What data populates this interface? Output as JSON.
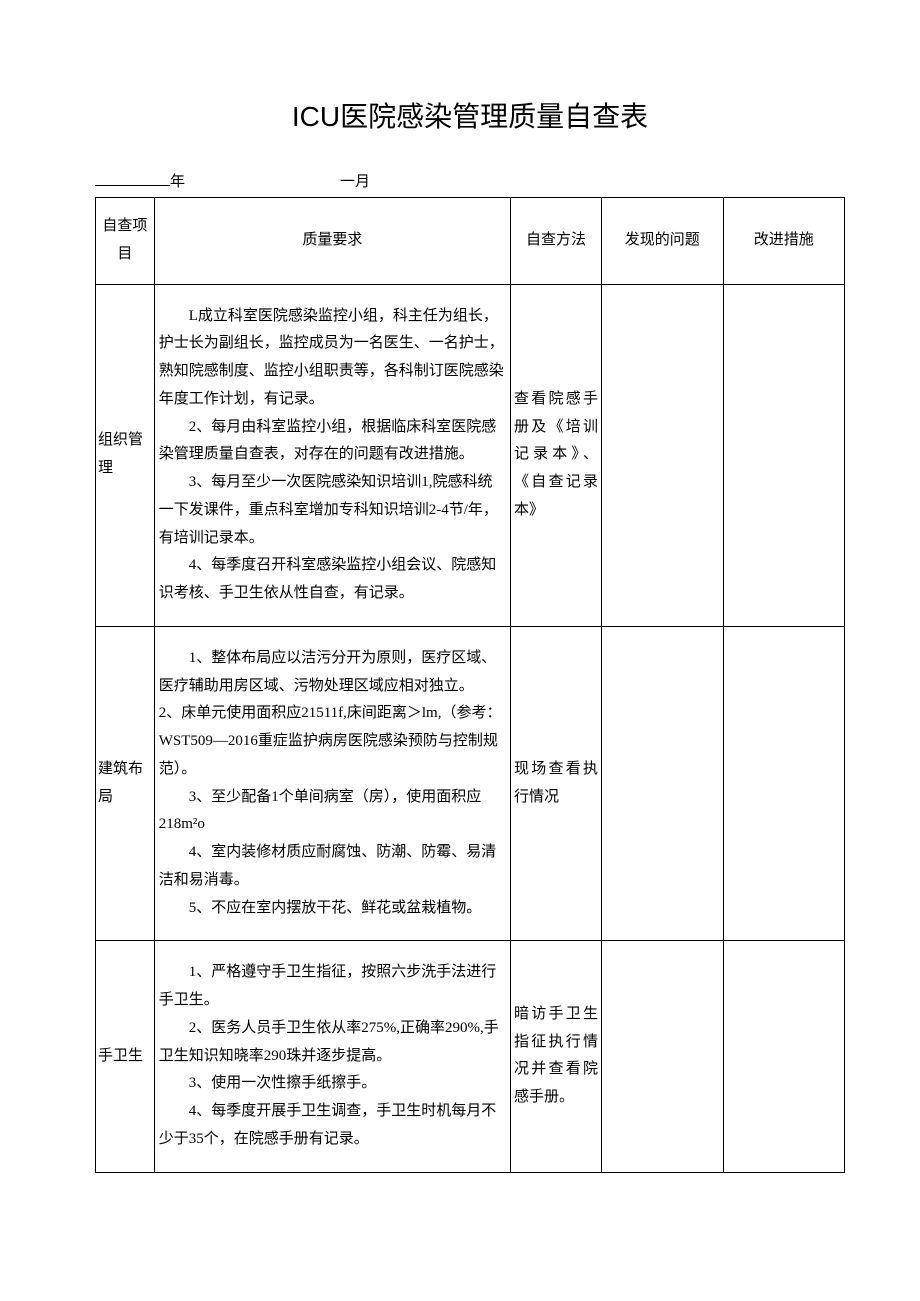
{
  "title": "ICU医院感染管理质量自查表",
  "date": {
    "year_label": "年",
    "month_label": "一月"
  },
  "headers": {
    "item": "自查项目",
    "requirement": "质量要求",
    "method": "自查方法",
    "problem": "发现的问题",
    "improve": "改进措施"
  },
  "rows": [
    {
      "item": "组织管理",
      "req_lines": [
        "L成立科室医院感染监控小组，科主任为组长，护士长为副组长，监控成员为一名医生、一名护士，熟知院感制度、监控小组职责等，各科制订医院感染年度工作计划，有记录。",
        "2、每月由科室监控小组，根据临床科室医院感染管理质量自查表，对存在的问题有改进措施。",
        "3、每月至少一次医院感染知识培训1,院感科统一下发课件，重点科室增加专科知识培训2-4节/年，有培训记录本。",
        "4、每季度召开科室感染监控小组会议、院感知识考核、手卫生依从性自查，有记录。"
      ],
      "method": "查看院感手册及《培训记录本》、《自查记录本》"
    },
    {
      "item": "建筑布局",
      "req_lines": [
        "1、整体布局应以洁污分开为原则，医疗区域、医疗辅助用房区域、污物处理区域应相对独立。",
        "2、床单元使用面积应21511f,床间距离＞lm,（参考：WST509—2016重症监护病房医院感染预防与控制规范）。",
        "3、至少配备1个单间病室（房），使用面积应218m²o",
        "4、室内装修材质应耐腐蚀、防潮、防霉、易清洁和易消毒。",
        "5、不应在室内摆放干花、鲜花或盆栽植物。"
      ],
      "method": "现场查看执行情况"
    },
    {
      "item": "手卫生",
      "req_lines": [
        "1、严格遵守手卫生指征，按照六步洗手法进行手卫生。",
        "2、医务人员手卫生依从率275%,正确率290%,手卫生知识知晓率290珠并逐步提高。",
        "3、使用一次性擦手纸擦手。",
        "4、每季度开展手卫生调查，手卫生时机每月不少于35个，在院感手册有记录。"
      ],
      "method": "暗访手卫生指征执行情况并查看院感手册。"
    }
  ]
}
